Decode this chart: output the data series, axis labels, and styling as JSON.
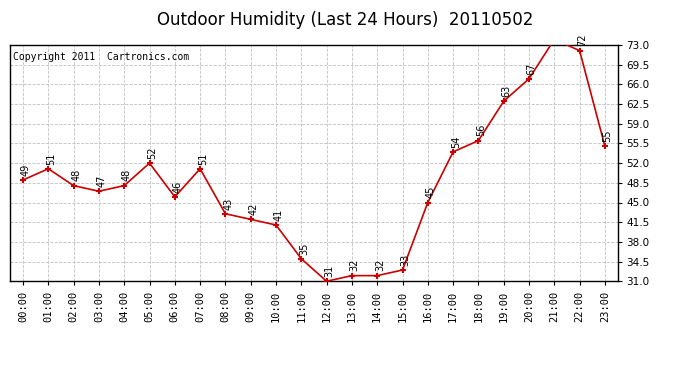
{
  "title": "Outdoor Humidity (Last 24 Hours)  20110502",
  "copyright": "Copyright 2011  Cartronics.com",
  "hours": [
    0,
    1,
    2,
    3,
    4,
    5,
    6,
    7,
    8,
    9,
    10,
    11,
    12,
    13,
    14,
    15,
    16,
    17,
    18,
    19,
    20,
    21,
    22,
    23
  ],
  "x_labels": [
    "00:00",
    "01:00",
    "02:00",
    "03:00",
    "04:00",
    "05:00",
    "06:00",
    "07:00",
    "08:00",
    "09:00",
    "10:00",
    "11:00",
    "12:00",
    "13:00",
    "14:00",
    "15:00",
    "16:00",
    "17:00",
    "18:00",
    "19:00",
    "20:00",
    "21:00",
    "22:00",
    "23:00"
  ],
  "values": [
    49,
    51,
    48,
    47,
    48,
    52,
    46,
    51,
    43,
    42,
    41,
    35,
    31,
    32,
    32,
    33,
    45,
    54,
    56,
    63,
    67,
    74,
    72,
    55
  ],
  "ylim": [
    31.0,
    73.0
  ],
  "yticks": [
    31.0,
    34.5,
    38.0,
    41.5,
    45.0,
    48.5,
    52.0,
    55.5,
    59.0,
    62.5,
    66.0,
    69.5,
    73.0
  ],
  "line_color": "#cc0000",
  "marker_color": "#cc0000",
  "bg_color": "#ffffff",
  "plot_bg_color": "#ffffff",
  "grid_color": "#c0c0c0",
  "title_fontsize": 12,
  "copyright_fontsize": 7,
  "label_fontsize": 7,
  "tick_fontsize": 7.5
}
